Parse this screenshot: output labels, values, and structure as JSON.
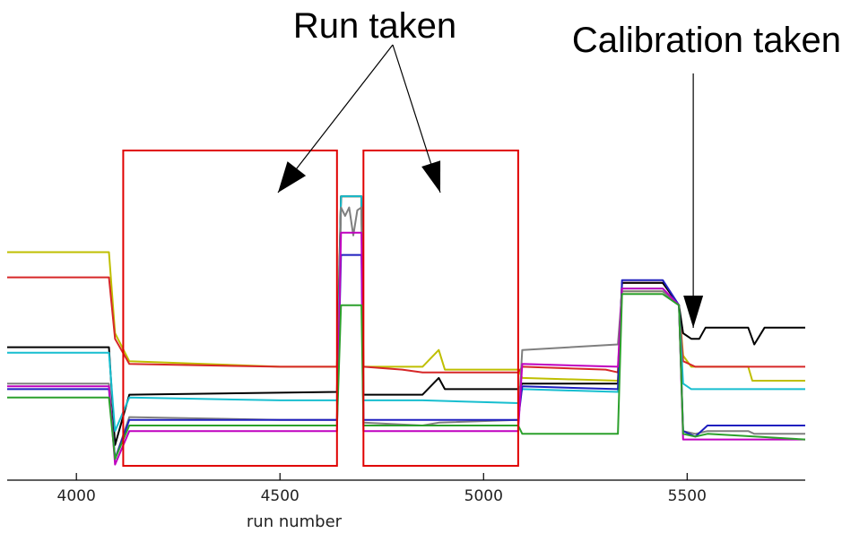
{
  "chart_data": {
    "type": "line",
    "title": "",
    "xlabel": "run number",
    "ylabel": "",
    "xlim": [
      3830,
      5790
    ],
    "ylim": [
      0,
      100
    ],
    "xticks": [
      4000,
      4500,
      5000,
      5500
    ],
    "grid": false,
    "legend": "none",
    "annotations": [
      {
        "text": "Run taken",
        "boxes": [
          [
            4115,
            4640
          ],
          [
            4705,
            5085
          ]
        ]
      },
      {
        "text": "Calibration taken",
        "at_x": 5515
      }
    ],
    "series": [
      {
        "color": "#bfbf00",
        "points": [
          [
            3830,
            79
          ],
          [
            4080,
            79
          ],
          [
            4095,
            50
          ],
          [
            4130,
            40
          ],
          [
            4500,
            38
          ],
          [
            4640,
            38
          ],
          [
            4650,
            99
          ],
          [
            4700,
            99
          ],
          [
            4705,
            38
          ],
          [
            4850,
            38
          ],
          [
            4890,
            44
          ],
          [
            4905,
            37
          ],
          [
            5085,
            37
          ],
          [
            5095,
            34
          ],
          [
            5330,
            33
          ],
          [
            5340,
            65
          ],
          [
            5440,
            65
          ],
          [
            5480,
            60
          ],
          [
            5490,
            42
          ],
          [
            5510,
            38
          ],
          [
            5550,
            38
          ],
          [
            5600,
            38
          ],
          [
            5650,
            38
          ],
          [
            5660,
            33
          ],
          [
            5790,
            33
          ]
        ]
      },
      {
        "color": "#d62728",
        "points": [
          [
            3830,
            70
          ],
          [
            4080,
            70
          ],
          [
            4095,
            48
          ],
          [
            4130,
            39
          ],
          [
            4500,
            38
          ],
          [
            4640,
            38
          ],
          [
            4650,
            99
          ],
          [
            4700,
            99
          ],
          [
            4705,
            38
          ],
          [
            4800,
            37
          ],
          [
            4850,
            36
          ],
          [
            5085,
            36
          ],
          [
            5095,
            38
          ],
          [
            5300,
            37
          ],
          [
            5330,
            36
          ],
          [
            5340,
            68
          ],
          [
            5440,
            68
          ],
          [
            5480,
            60
          ],
          [
            5490,
            40
          ],
          [
            5520,
            38
          ],
          [
            5550,
            38
          ],
          [
            5600,
            38
          ],
          [
            5790,
            38
          ]
        ]
      },
      {
        "color": "#000000",
        "points": [
          [
            3830,
            45
          ],
          [
            4080,
            45
          ],
          [
            4095,
            10
          ],
          [
            4130,
            28
          ],
          [
            4640,
            29
          ],
          [
            4650,
            99
          ],
          [
            4700,
            99
          ],
          [
            4705,
            28
          ],
          [
            4850,
            28
          ],
          [
            4890,
            34
          ],
          [
            4905,
            30
          ],
          [
            5085,
            30
          ],
          [
            5095,
            32
          ],
          [
            5330,
            32
          ],
          [
            5340,
            68
          ],
          [
            5440,
            68
          ],
          [
            5480,
            60
          ],
          [
            5490,
            50
          ],
          [
            5510,
            48
          ],
          [
            5530,
            48
          ],
          [
            5545,
            52
          ],
          [
            5560,
            52
          ],
          [
            5650,
            52
          ],
          [
            5665,
            46
          ],
          [
            5690,
            52
          ],
          [
            5790,
            52
          ]
        ]
      },
      {
        "color": "#17becf",
        "points": [
          [
            3830,
            43
          ],
          [
            4080,
            43
          ],
          [
            4095,
            15
          ],
          [
            4130,
            27
          ],
          [
            4500,
            26
          ],
          [
            4640,
            26
          ],
          [
            4650,
            99
          ],
          [
            4700,
            99
          ],
          [
            4705,
            26
          ],
          [
            4850,
            26
          ],
          [
            5085,
            25
          ],
          [
            5095,
            30
          ],
          [
            5330,
            29
          ],
          [
            5340,
            66
          ],
          [
            5440,
            66
          ],
          [
            5480,
            60
          ],
          [
            5490,
            32
          ],
          [
            5510,
            30
          ],
          [
            5550,
            30
          ],
          [
            5600,
            30
          ],
          [
            5790,
            30
          ]
        ]
      },
      {
        "color": "#7f7f7f",
        "points": [
          [
            3830,
            32
          ],
          [
            4080,
            32
          ],
          [
            4095,
            5
          ],
          [
            4130,
            20
          ],
          [
            4500,
            19
          ],
          [
            4640,
            19
          ],
          [
            4650,
            95
          ],
          [
            4660,
            92
          ],
          [
            4670,
            95
          ],
          [
            4680,
            85
          ],
          [
            4690,
            94
          ],
          [
            4700,
            95
          ],
          [
            4705,
            18
          ],
          [
            4850,
            17
          ],
          [
            4890,
            18
          ],
          [
            5085,
            19
          ],
          [
            5095,
            44
          ],
          [
            5330,
            46
          ],
          [
            5340,
            65
          ],
          [
            5440,
            65
          ],
          [
            5480,
            60
          ],
          [
            5490,
            15
          ],
          [
            5520,
            14
          ],
          [
            5550,
            15
          ],
          [
            5650,
            15
          ],
          [
            5665,
            14
          ],
          [
            5790,
            14
          ]
        ]
      },
      {
        "color": "#1f1fbf",
        "points": [
          [
            3830,
            30
          ],
          [
            4080,
            30
          ],
          [
            4095,
            5
          ],
          [
            4130,
            19
          ],
          [
            4500,
            19
          ],
          [
            4640,
            19
          ],
          [
            4650,
            78
          ],
          [
            4700,
            78
          ],
          [
            4705,
            19
          ],
          [
            4850,
            19
          ],
          [
            5085,
            19
          ],
          [
            5095,
            31
          ],
          [
            5330,
            30
          ],
          [
            5340,
            69
          ],
          [
            5440,
            69
          ],
          [
            5480,
            60
          ],
          [
            5490,
            15
          ],
          [
            5520,
            13
          ],
          [
            5550,
            17
          ],
          [
            5600,
            17
          ],
          [
            5790,
            17
          ]
        ]
      },
      {
        "color": "#bf00bf",
        "points": [
          [
            3830,
            31
          ],
          [
            4080,
            31
          ],
          [
            4095,
            3
          ],
          [
            4130,
            15
          ],
          [
            4500,
            15
          ],
          [
            4640,
            15
          ],
          [
            4650,
            86
          ],
          [
            4700,
            86
          ],
          [
            4705,
            15
          ],
          [
            4850,
            15
          ],
          [
            5085,
            15
          ],
          [
            5095,
            39
          ],
          [
            5330,
            38
          ],
          [
            5340,
            66
          ],
          [
            5440,
            66
          ],
          [
            5480,
            60
          ],
          [
            5490,
            12
          ],
          [
            5510,
            12
          ],
          [
            5550,
            12
          ],
          [
            5600,
            12
          ],
          [
            5790,
            12
          ]
        ]
      },
      {
        "color": "#2ca02c",
        "points": [
          [
            3830,
            27
          ],
          [
            4080,
            27
          ],
          [
            4095,
            5
          ],
          [
            4130,
            17
          ],
          [
            4500,
            17
          ],
          [
            4640,
            17
          ],
          [
            4650,
            60
          ],
          [
            4700,
            60
          ],
          [
            4705,
            17
          ],
          [
            4850,
            17
          ],
          [
            5085,
            17
          ],
          [
            5095,
            14
          ],
          [
            5330,
            14
          ],
          [
            5340,
            64
          ],
          [
            5440,
            64
          ],
          [
            5480,
            60
          ],
          [
            5490,
            14
          ],
          [
            5520,
            13
          ],
          [
            5550,
            14
          ],
          [
            5790,
            12
          ]
        ]
      }
    ]
  }
}
